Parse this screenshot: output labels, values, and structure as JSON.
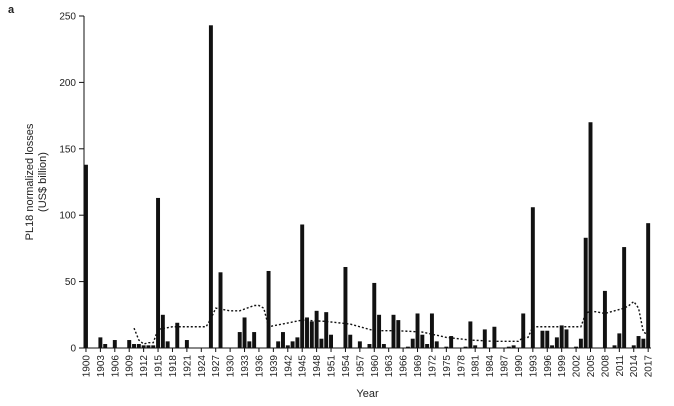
{
  "chart_data": {
    "type": "bar",
    "panel_label": "a",
    "xlabel": "Year",
    "ylabel_line1": "PL18 normalized losses",
    "ylabel_line2": "(US$ billion)",
    "ylim": [
      0,
      250
    ],
    "yticks": [
      0,
      50,
      100,
      150,
      200,
      250
    ],
    "xlim": [
      1900,
      2018
    ],
    "xticks": [
      1900,
      1903,
      1906,
      1909,
      1912,
      1915,
      1918,
      1921,
      1924,
      1927,
      1930,
      1933,
      1936,
      1939,
      1942,
      1945,
      1948,
      1951,
      1954,
      1957,
      1960,
      1963,
      1966,
      1969,
      1972,
      1975,
      1978,
      1981,
      1984,
      1987,
      1990,
      1993,
      1996,
      1999,
      2002,
      2005,
      2008,
      2011,
      2014,
      2017
    ],
    "grid": false,
    "series": [
      {
        "type": "bar",
        "x": [
          1900,
          1903,
          1904,
          1906,
          1909,
          1910,
          1911,
          1912,
          1913,
          1914,
          1915,
          1916,
          1917,
          1919,
          1921,
          1926,
          1928,
          1932,
          1933,
          1934,
          1935,
          1938,
          1940,
          1941,
          1942,
          1943,
          1944,
          1945,
          1946,
          1947,
          1948,
          1949,
          1950,
          1951,
          1954,
          1955,
          1957,
          1959,
          1960,
          1961,
          1962,
          1964,
          1965,
          1967,
          1968,
          1969,
          1970,
          1971,
          1972,
          1973,
          1975,
          1976,
          1979,
          1980,
          1981,
          1983,
          1985,
          1988,
          1989,
          1991,
          1993,
          1995,
          1996,
          1997,
          1998,
          1999,
          2000,
          2002,
          2003,
          2004,
          2005,
          2008,
          2010,
          2011,
          2012,
          2014,
          2015,
          2016,
          2017
        ],
        "values": [
          138,
          8,
          3,
          6,
          6,
          3,
          3,
          2,
          2,
          2,
          113,
          25,
          5,
          19,
          6,
          243,
          57,
          12,
          23,
          5,
          12,
          58,
          5,
          12,
          2,
          5,
          8,
          93,
          23,
          20,
          28,
          7,
          27,
          10,
          61,
          10,
          5,
          3,
          49,
          25,
          3,
          25,
          21,
          1,
          7,
          26,
          10,
          3,
          26,
          5,
          1,
          9,
          1,
          20,
          2,
          14,
          16,
          1,
          2,
          26,
          106,
          13,
          13,
          2,
          8,
          17,
          14,
          1,
          7,
          83,
          170,
          43,
          2,
          11,
          76,
          2,
          9,
          7,
          94
        ]
      },
      {
        "type": "line",
        "style": "dotted",
        "x": [
          1910,
          1911,
          1912,
          1913,
          1914,
          1915,
          1918,
          1920,
          1924,
          1925,
          1926,
          1927,
          1930,
          1932,
          1935,
          1936,
          1937,
          1938,
          1945,
          1950,
          1955,
          1960,
          1965,
          1970,
          1975,
          1980,
          1985,
          1990,
          1991,
          1992,
          1993,
          2000,
          2003,
          2004,
          2005,
          2008,
          2010,
          2012,
          2013,
          2014,
          2015,
          2016,
          2017
        ],
        "values": [
          15,
          6,
          3,
          4,
          4,
          14,
          16,
          16,
          16,
          16,
          22,
          30,
          28,
          28,
          32,
          32,
          30,
          16,
          21,
          20,
          18,
          13,
          13,
          12,
          8,
          6,
          5,
          5,
          8,
          8,
          16,
          16,
          16,
          26,
          28,
          26,
          28,
          30,
          32,
          35,
          30,
          12,
          10
        ]
      }
    ]
  }
}
